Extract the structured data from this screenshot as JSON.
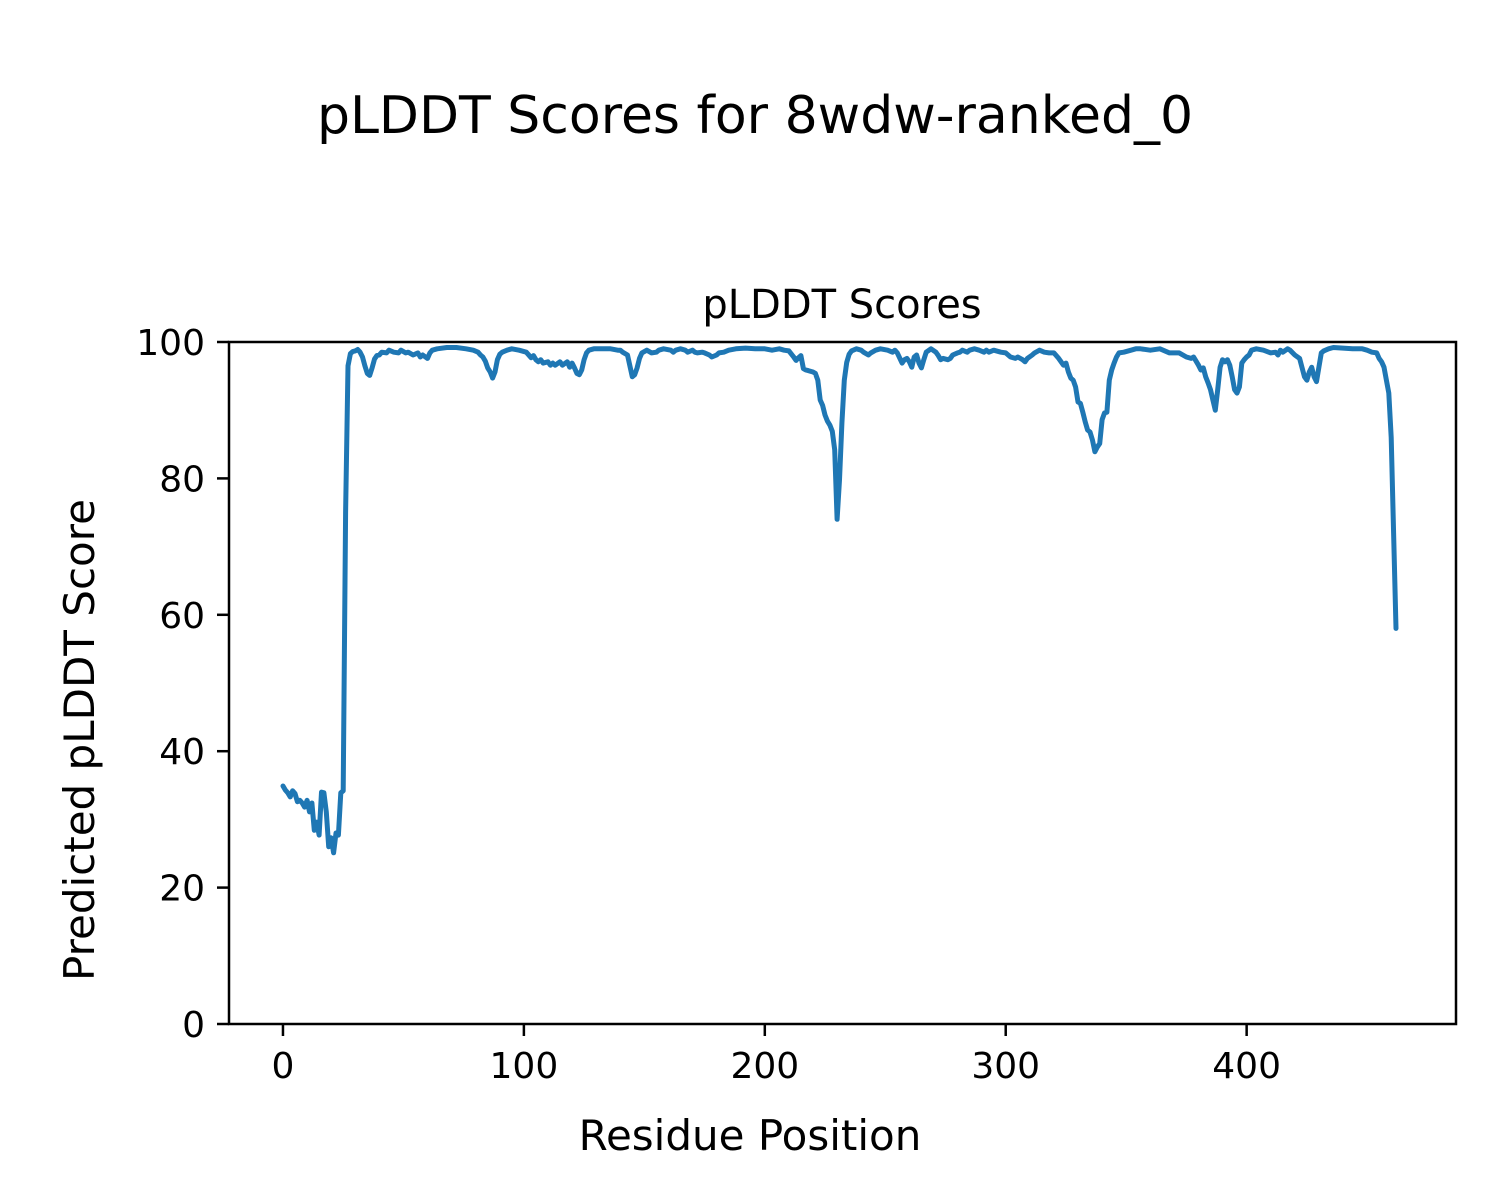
{
  "figure": {
    "suptitle": "pLDDT Scores for 8wdw-ranked_0"
  },
  "chart_data": {
    "type": "line",
    "title": "pLDDT Scores",
    "suptitle": "pLDDT Scores for 8wdw-ranked_0",
    "xlabel": "Residue Position",
    "ylabel": "Predicted pLDDT Score",
    "xlim": [
      -22.4,
      486.9
    ],
    "ylim": [
      0,
      100
    ],
    "xticks": [
      0,
      100,
      200,
      300,
      400
    ],
    "yticks": [
      0,
      20,
      40,
      60,
      80,
      100
    ],
    "grid": false,
    "legend": null,
    "line_color": "#1f77b4",
    "axis_color": "#000000",
    "series": [
      {
        "name": "pLDDT",
        "x": [
          0,
          1,
          2,
          3,
          4,
          5,
          6,
          7,
          8,
          9,
          10,
          11,
          12,
          13,
          14,
          15,
          16,
          17,
          18,
          19,
          20,
          21,
          22,
          23,
          24,
          25,
          26,
          27,
          28,
          29,
          30,
          31,
          32,
          33,
          34,
          35,
          36,
          37,
          38,
          39,
          40,
          41,
          43,
          44,
          46,
          48,
          49,
          51,
          52,
          54,
          56,
          57,
          58,
          60,
          61,
          62,
          64,
          68,
          72,
          76,
          79,
          81,
          82,
          83,
          84,
          85,
          86,
          87,
          88,
          89,
          90,
          91,
          93,
          95,
          98,
          101,
          103,
          104,
          105,
          106,
          107,
          108,
          110,
          111,
          112,
          113,
          115,
          116,
          118,
          119,
          120,
          121,
          122,
          123,
          124,
          125,
          126,
          127,
          129,
          132,
          136,
          139,
          140,
          141,
          143,
          144,
          145,
          146,
          147,
          148,
          149,
          151,
          153,
          155,
          156,
          158,
          161,
          162,
          163,
          165,
          167,
          168,
          170,
          171,
          172,
          174,
          175,
          177,
          178,
          180,
          181,
          183,
          185,
          188,
          192,
          196,
          200,
          203,
          206,
          208,
          210,
          212,
          213,
          214,
          215,
          216,
          217,
          218,
          220,
          221,
          222,
          223,
          224,
          225,
          226,
          227,
          228,
          229,
          230,
          231,
          232,
          233,
          234,
          235,
          236,
          238,
          240,
          241,
          243,
          244,
          246,
          248,
          251,
          253,
          254,
          255,
          257,
          258,
          259,
          260,
          261,
          262,
          263,
          264,
          265,
          266,
          267,
          269,
          271,
          272,
          273,
          274,
          276,
          277,
          278,
          280,
          281,
          282,
          284,
          285,
          287,
          289,
          291,
          292,
          293,
          295,
          298,
          300,
          302,
          304,
          305,
          307,
          308,
          309,
          311,
          312,
          314,
          316,
          318,
          320,
          322,
          324,
          325,
          326,
          327,
          328,
          329,
          330,
          331,
          332,
          333,
          334,
          335,
          336,
          337,
          338,
          339,
          340,
          341,
          342,
          343,
          344,
          345,
          346,
          347,
          349,
          352,
          354,
          356,
          360,
          364,
          368,
          372,
          375,
          377,
          378,
          380,
          381,
          382,
          383,
          384,
          385,
          386,
          387,
          388,
          389,
          390,
          391,
          392,
          393,
          394,
          395,
          396,
          397,
          398,
          399,
          400,
          401,
          402,
          404,
          407,
          410,
          412,
          413,
          414,
          415,
          417,
          418,
          420,
          422,
          423,
          424,
          425,
          426,
          427,
          428,
          429,
          430,
          431,
          432,
          434,
          436,
          440,
          444,
          448,
          450,
          452,
          454,
          455,
          456,
          457,
          458,
          459,
          460,
          461,
          462
        ],
        "y": [
          34.9,
          34.3,
          33.9,
          33.3,
          34.2,
          33.8,
          32.6,
          32.8,
          32.4,
          31.8,
          32.8,
          31.1,
          32.4,
          28.4,
          29.6,
          27.7,
          34.0,
          33.9,
          31.1,
          26.0,
          27.3,
          25.1,
          28.0,
          27.7,
          33.9,
          34.2,
          75.0,
          96.5,
          98.3,
          98.6,
          98.7,
          98.9,
          98.5,
          97.8,
          96.5,
          95.4,
          95.1,
          96.2,
          97.5,
          98.0,
          98.1,
          98.5,
          98.4,
          98.8,
          98.5,
          98.4,
          98.8,
          98.4,
          98.5,
          98.1,
          98.4,
          97.8,
          98.1,
          97.6,
          98.4,
          98.8,
          99.0,
          99.2,
          99.2,
          99.0,
          98.8,
          98.5,
          98.1,
          97.8,
          97.2,
          96.2,
          95.6,
          94.7,
          95.6,
          97.4,
          98.2,
          98.5,
          98.8,
          99.0,
          98.8,
          98.5,
          97.7,
          98.0,
          97.4,
          97.1,
          97.4,
          96.9,
          97.1,
          96.6,
          96.9,
          96.6,
          97.1,
          96.6,
          97.1,
          96.3,
          96.9,
          96.2,
          95.4,
          95.2,
          95.9,
          97.4,
          98.4,
          98.8,
          99.0,
          99.0,
          99.0,
          98.8,
          98.8,
          98.5,
          98.1,
          96.5,
          94.9,
          95.2,
          96.2,
          97.6,
          98.4,
          98.8,
          98.4,
          98.5,
          98.8,
          99.0,
          98.8,
          98.5,
          98.8,
          99.0,
          98.8,
          98.5,
          98.8,
          98.5,
          98.4,
          98.5,
          98.4,
          98.1,
          97.8,
          98.1,
          98.4,
          98.5,
          98.8,
          99.0,
          99.1,
          99.0,
          99.0,
          98.8,
          99.0,
          98.8,
          98.7,
          97.8,
          97.3,
          97.7,
          98.0,
          96.1,
          95.9,
          95.8,
          95.6,
          95.4,
          94.4,
          91.5,
          90.7,
          89.3,
          88.4,
          87.8,
          86.9,
          84.2,
          74.0,
          79.8,
          88.1,
          94.4,
          97.0,
          98.2,
          98.7,
          99.0,
          98.8,
          98.5,
          98.1,
          98.4,
          98.8,
          99.0,
          98.8,
          98.5,
          98.8,
          98.4,
          96.9,
          97.4,
          97.6,
          97.1,
          96.3,
          97.8,
          98.1,
          96.9,
          96.2,
          97.4,
          98.5,
          99.0,
          98.5,
          98.0,
          97.4,
          97.6,
          97.4,
          97.6,
          98.1,
          98.4,
          98.5,
          98.8,
          98.5,
          98.8,
          99.0,
          98.8,
          98.5,
          98.8,
          98.5,
          98.8,
          98.5,
          98.4,
          97.8,
          97.6,
          97.8,
          97.4,
          97.1,
          97.6,
          98.1,
          98.4,
          98.8,
          98.5,
          98.4,
          98.4,
          97.6,
          96.6,
          96.9,
          95.6,
          94.7,
          94.4,
          93.4,
          91.2,
          91.0,
          89.7,
          88.3,
          87.1,
          86.8,
          85.6,
          83.9,
          84.6,
          85.1,
          88.6,
          89.6,
          89.7,
          94.4,
          95.9,
          96.9,
          97.8,
          98.4,
          98.5,
          98.8,
          99.0,
          99.0,
          98.8,
          99.0,
          98.4,
          98.4,
          97.8,
          97.6,
          97.8,
          96.6,
          95.9,
          96.2,
          94.9,
          94.0,
          93.0,
          91.5,
          90.0,
          93.0,
          96.3,
          97.4,
          97.1,
          97.4,
          96.6,
          94.9,
          93.0,
          92.5,
          93.4,
          96.9,
          97.4,
          97.8,
          98.1,
          98.8,
          99.0,
          98.8,
          98.4,
          98.5,
          98.1,
          98.8,
          98.5,
          99.0,
          98.8,
          98.1,
          97.6,
          96.2,
          94.9,
          94.4,
          95.6,
          96.3,
          94.9,
          94.2,
          96.3,
          98.4,
          98.7,
          99.0,
          99.2,
          99.1,
          99.0,
          99.0,
          98.8,
          98.5,
          98.4,
          97.6,
          97.1,
          96.3,
          94.4,
          92.5,
          86.0,
          72.0,
          58.0
        ]
      }
    ]
  }
}
